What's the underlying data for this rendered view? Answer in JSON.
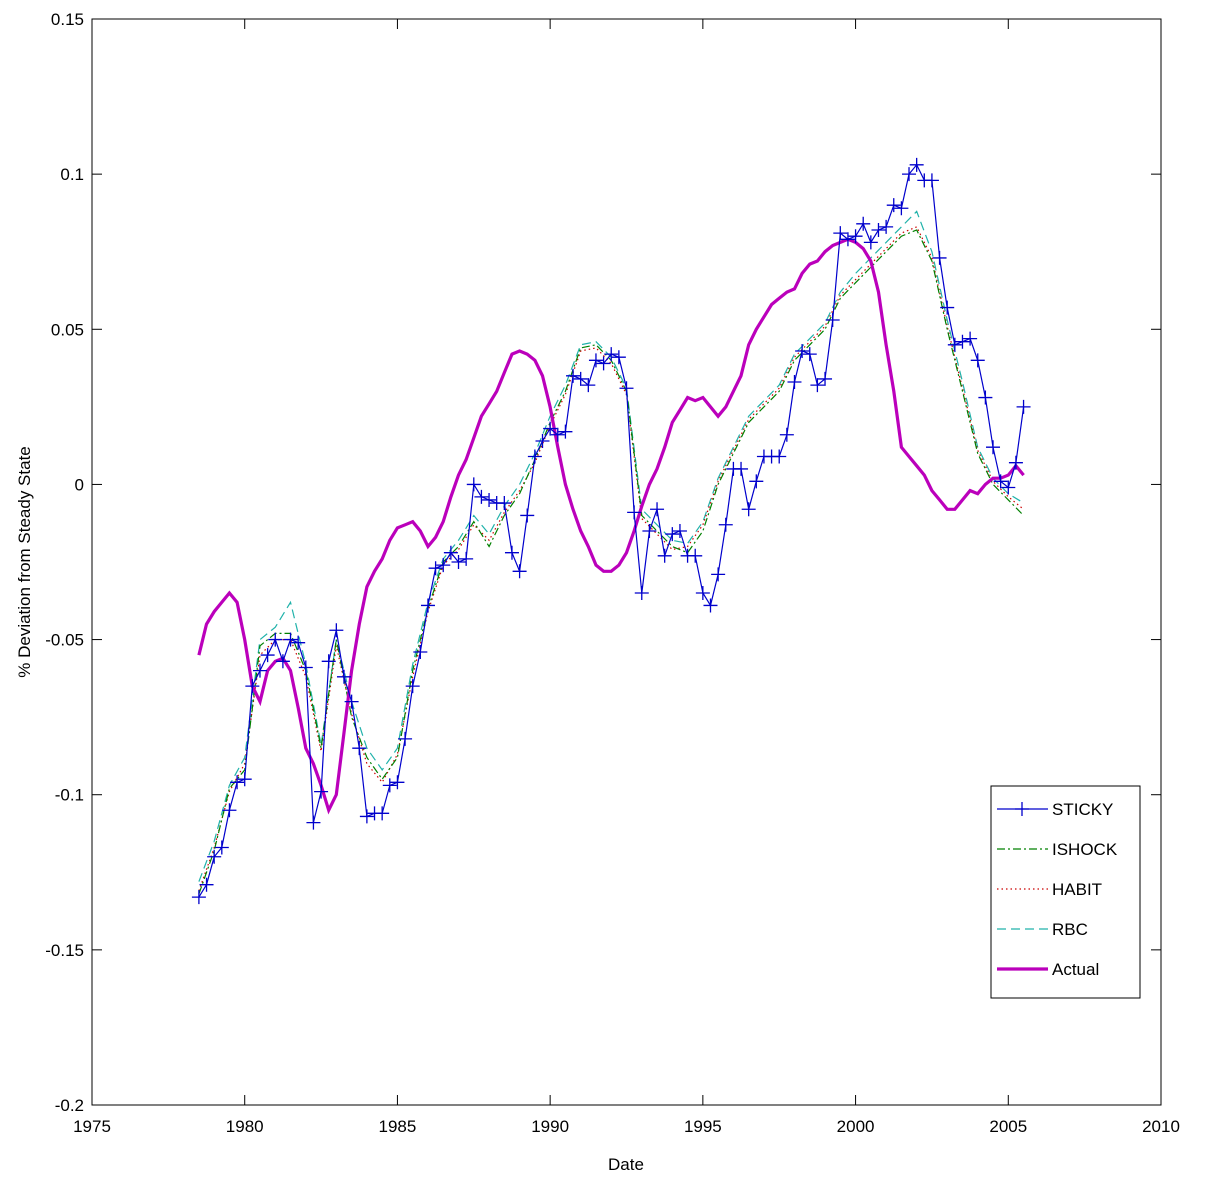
{
  "chart_data": {
    "type": "line",
    "title": "",
    "xlabel": "Date",
    "ylabel": "% Deviation from Steady State",
    "xlim": [
      1975,
      2010
    ],
    "ylim": [
      -0.2,
      0.15
    ],
    "xticks": [
      1975,
      1980,
      1985,
      1990,
      1995,
      2000,
      2005,
      2010
    ],
    "xtick_labels": [
      "1975",
      "1980",
      "1985",
      "1990",
      "1995",
      "2000",
      "2005",
      "2010"
    ],
    "yticks": [
      -0.2,
      -0.15,
      -0.1,
      -0.05,
      0,
      0.05,
      0.1,
      0.15
    ],
    "ytick_labels": [
      "-0.2",
      "-0.15",
      "-0.1",
      "-0.05",
      "0",
      "0.05",
      "0.1",
      "0.15"
    ],
    "grid": false,
    "legend_position": "lower-right",
    "series": [
      {
        "name": "STICKY",
        "color": "#0000cc",
        "style": "solid-plus",
        "x": [
          1978.5,
          1978.75,
          1979.0,
          1979.25,
          1979.5,
          1979.75,
          1980.0,
          1980.25,
          1980.5,
          1980.75,
          1981.0,
          1981.25,
          1981.5,
          1981.75,
          1982.0,
          1982.25,
          1982.5,
          1982.75,
          1983.0,
          1983.25,
          1983.5,
          1983.75,
          1984.0,
          1984.25,
          1984.5,
          1984.75,
          1985.0,
          1985.25,
          1985.5,
          1985.75,
          1986.0,
          1986.25,
          1986.5,
          1986.75,
          1987.0,
          1987.25,
          1987.5,
          1987.75,
          1988.0,
          1988.25,
          1988.5,
          1988.75,
          1989.0,
          1989.25,
          1989.5,
          1989.75,
          1990.0,
          1990.25,
          1990.5,
          1990.75,
          1991.0,
          1991.25,
          1991.5,
          1991.75,
          1992.0,
          1992.25,
          1992.5,
          1992.75,
          1993.0,
          1993.25,
          1993.5,
          1993.75,
          1994.0,
          1994.25,
          1994.5,
          1994.75,
          1995.0,
          1995.25,
          1995.5,
          1995.75,
          1996.0,
          1996.25,
          1996.5,
          1996.75,
          1997.0,
          1997.25,
          1997.5,
          1997.75,
          1998.0,
          1998.25,
          1998.5,
          1998.75,
          1999.0,
          1999.25,
          1999.5,
          1999.75,
          2000.0,
          2000.25,
          2000.5,
          2000.75,
          2001.0,
          2001.25,
          2001.5,
          2001.75,
          2002.0,
          2002.25,
          2002.5,
          2002.75,
          2003.0,
          2003.25,
          2003.5,
          2003.75,
          2004.0,
          2004.25,
          2004.5,
          2004.75,
          2005.0,
          2005.25,
          2005.5
        ],
        "y": [
          -0.133,
          -0.129,
          -0.12,
          -0.117,
          -0.105,
          -0.096,
          -0.095,
          -0.065,
          -0.06,
          -0.055,
          -0.05,
          -0.057,
          -0.05,
          -0.051,
          -0.059,
          -0.109,
          -0.099,
          -0.057,
          -0.047,
          -0.062,
          -0.07,
          -0.085,
          -0.107,
          -0.106,
          -0.106,
          -0.097,
          -0.096,
          -0.082,
          -0.065,
          -0.054,
          -0.039,
          -0.027,
          -0.026,
          -0.022,
          -0.025,
          -0.024,
          0.0,
          -0.004,
          -0.005,
          -0.006,
          -0.006,
          -0.022,
          -0.028,
          -0.01,
          0.009,
          0.014,
          0.018,
          0.016,
          0.017,
          0.035,
          0.034,
          0.032,
          0.04,
          0.039,
          0.042,
          0.041,
          0.031,
          -0.009,
          -0.035,
          -0.015,
          -0.008,
          -0.023,
          -0.016,
          -0.015,
          -0.023,
          -0.023,
          -0.035,
          -0.039,
          -0.029,
          -0.013,
          0.005,
          0.005,
          -0.008,
          0.001,
          0.009,
          0.009,
          0.009,
          0.016,
          0.033,
          0.043,
          0.042,
          0.032,
          0.034,
          0.053,
          0.081,
          0.079,
          0.08,
          0.084,
          0.078,
          0.082,
          0.083,
          0.09,
          0.089,
          0.1,
          0.103,
          0.098,
          0.098,
          0.073,
          0.057,
          0.045,
          0.046,
          0.047,
          0.04,
          0.028,
          0.012,
          0.001,
          -0.001,
          0.007,
          0.025
        ]
      },
      {
        "name": "ISHOCK",
        "color": "#008000",
        "style": "dash-dot",
        "x": [
          1978.5,
          1979.0,
          1979.5,
          1980.0,
          1980.5,
          1981.0,
          1981.5,
          1982.0,
          1982.5,
          1983.0,
          1983.5,
          1984.0,
          1984.5,
          1985.0,
          1985.5,
          1986.0,
          1986.5,
          1987.0,
          1987.5,
          1988.0,
          1988.5,
          1989.0,
          1989.5,
          1990.0,
          1990.5,
          1991.0,
          1991.5,
          1992.0,
          1992.5,
          1993.0,
          1993.5,
          1994.0,
          1994.5,
          1995.0,
          1995.5,
          1996.0,
          1996.5,
          1997.0,
          1997.5,
          1998.0,
          1998.5,
          1999.0,
          1999.5,
          2000.0,
          2000.5,
          2001.0,
          2001.5,
          2002.0,
          2002.5,
          2003.0,
          2003.5,
          2004.0,
          2004.5,
          2005.0,
          2005.5
        ],
        "y": [
          -0.132,
          -0.118,
          -0.098,
          -0.092,
          -0.052,
          -0.048,
          -0.048,
          -0.06,
          -0.085,
          -0.05,
          -0.075,
          -0.088,
          -0.095,
          -0.088,
          -0.06,
          -0.04,
          -0.025,
          -0.02,
          -0.012,
          -0.02,
          -0.01,
          -0.003,
          0.008,
          0.02,
          0.03,
          0.044,
          0.045,
          0.04,
          0.03,
          -0.01,
          -0.015,
          -0.02,
          -0.022,
          -0.015,
          0.0,
          0.01,
          0.02,
          0.025,
          0.03,
          0.04,
          0.045,
          0.05,
          0.06,
          0.065,
          0.07,
          0.075,
          0.08,
          0.082,
          0.072,
          0.05,
          0.03,
          0.01,
          0.0,
          -0.005,
          -0.01
        ]
      },
      {
        "name": "HABIT",
        "color": "#cc0000",
        "style": "dotted",
        "x": [
          1978.5,
          1979.0,
          1979.5,
          1980.0,
          1980.5,
          1981.0,
          1981.5,
          1982.0,
          1982.5,
          1983.0,
          1983.5,
          1984.0,
          1984.5,
          1985.0,
          1985.5,
          1986.0,
          1986.5,
          1987.0,
          1987.5,
          1988.0,
          1988.5,
          1989.0,
          1989.5,
          1990.0,
          1990.5,
          1991.0,
          1991.5,
          1992.0,
          1992.5,
          1993.0,
          1993.5,
          1994.0,
          1994.5,
          1995.0,
          1995.5,
          1996.0,
          1996.5,
          1997.0,
          1997.5,
          1998.0,
          1998.5,
          1999.0,
          1999.5,
          2000.0,
          2000.5,
          2001.0,
          2001.5,
          2002.0,
          2002.5,
          2003.0,
          2003.5,
          2004.0,
          2004.5,
          2005.0,
          2005.5
        ],
        "y": [
          -0.131,
          -0.117,
          -0.099,
          -0.09,
          -0.055,
          -0.05,
          -0.05,
          -0.062,
          -0.086,
          -0.052,
          -0.074,
          -0.09,
          -0.096,
          -0.087,
          -0.062,
          -0.041,
          -0.026,
          -0.021,
          -0.013,
          -0.018,
          -0.009,
          -0.002,
          0.007,
          0.019,
          0.029,
          0.043,
          0.044,
          0.039,
          0.029,
          -0.011,
          -0.016,
          -0.021,
          -0.02,
          -0.013,
          0.001,
          0.011,
          0.021,
          0.026,
          0.031,
          0.041,
          0.046,
          0.051,
          0.061,
          0.066,
          0.071,
          0.076,
          0.081,
          0.083,
          0.073,
          0.051,
          0.031,
          0.011,
          0.001,
          -0.004,
          -0.008
        ]
      },
      {
        "name": "RBC",
        "color": "#20b2aa",
        "style": "dashed",
        "x": [
          1978.5,
          1979.0,
          1979.5,
          1980.0,
          1980.5,
          1981.0,
          1981.5,
          1982.0,
          1982.5,
          1983.0,
          1983.5,
          1984.0,
          1984.5,
          1985.0,
          1985.5,
          1986.0,
          1986.5,
          1987.0,
          1987.5,
          1988.0,
          1988.5,
          1989.0,
          1989.5,
          1990.0,
          1990.5,
          1991.0,
          1991.5,
          1992.0,
          1992.5,
          1993.0,
          1993.5,
          1994.0,
          1994.5,
          1995.0,
          1995.5,
          1996.0,
          1996.5,
          1997.0,
          1997.5,
          1998.0,
          1998.5,
          1999.0,
          1999.5,
          2000.0,
          2000.5,
          2001.0,
          2001.5,
          2002.0,
          2002.5,
          2003.0,
          2003.5,
          2004.0,
          2004.5,
          2005.0,
          2005.5
        ],
        "y": [
          -0.128,
          -0.115,
          -0.097,
          -0.088,
          -0.05,
          -0.046,
          -0.038,
          -0.058,
          -0.084,
          -0.05,
          -0.07,
          -0.085,
          -0.092,
          -0.085,
          -0.058,
          -0.038,
          -0.024,
          -0.018,
          -0.01,
          -0.016,
          -0.007,
          0.0,
          0.01,
          0.022,
          0.032,
          0.045,
          0.046,
          0.041,
          0.031,
          -0.008,
          -0.013,
          -0.018,
          -0.019,
          -0.012,
          0.002,
          0.012,
          0.022,
          0.027,
          0.032,
          0.042,
          0.047,
          0.052,
          0.062,
          0.068,
          0.073,
          0.078,
          0.083,
          0.088,
          0.075,
          0.053,
          0.033,
          0.012,
          0.002,
          -0.003,
          -0.006
        ]
      },
      {
        "name": "Actual",
        "color": "#bb00bb",
        "style": "thick-solid",
        "x": [
          1978.5,
          1978.75,
          1979.0,
          1979.25,
          1979.5,
          1979.75,
          1980.0,
          1980.25,
          1980.5,
          1980.75,
          1981.0,
          1981.25,
          1981.5,
          1981.75,
          1982.0,
          1982.25,
          1982.5,
          1982.75,
          1983.0,
          1983.25,
          1983.5,
          1983.75,
          1984.0,
          1984.25,
          1984.5,
          1984.75,
          1985.0,
          1985.25,
          1985.5,
          1985.75,
          1986.0,
          1986.25,
          1986.5,
          1986.75,
          1987.0,
          1987.25,
          1987.5,
          1987.75,
          1988.0,
          1988.25,
          1988.5,
          1988.75,
          1989.0,
          1989.25,
          1989.5,
          1989.75,
          1990.0,
          1990.25,
          1990.5,
          1990.75,
          1991.0,
          1991.25,
          1991.5,
          1991.75,
          1992.0,
          1992.25,
          1992.5,
          1992.75,
          1993.0,
          1993.25,
          1993.5,
          1993.75,
          1994.0,
          1994.25,
          1994.5,
          1994.75,
          1995.0,
          1995.25,
          1995.5,
          1995.75,
          1996.0,
          1996.25,
          1996.5,
          1996.75,
          1997.0,
          1997.25,
          1997.5,
          1997.75,
          1998.0,
          1998.25,
          1998.5,
          1998.75,
          1999.0,
          1999.25,
          1999.5,
          1999.75,
          2000.0,
          2000.25,
          2000.5,
          2000.75,
          2001.0,
          2001.25,
          2001.5,
          2001.75,
          2002.0,
          2002.25,
          2002.5,
          2002.75,
          2003.0,
          2003.25,
          2003.5,
          2003.75,
          2004.0,
          2004.25,
          2004.5,
          2004.75,
          2005.0,
          2005.25,
          2005.5
        ],
        "y": [
          -0.055,
          -0.045,
          -0.041,
          -0.038,
          -0.035,
          -0.038,
          -0.05,
          -0.065,
          -0.07,
          -0.06,
          -0.057,
          -0.056,
          -0.06,
          -0.072,
          -0.085,
          -0.09,
          -0.097,
          -0.105,
          -0.1,
          -0.08,
          -0.06,
          -0.045,
          -0.033,
          -0.028,
          -0.024,
          -0.018,
          -0.014,
          -0.013,
          -0.012,
          -0.015,
          -0.02,
          -0.017,
          -0.012,
          -0.004,
          0.003,
          0.008,
          0.015,
          0.022,
          0.026,
          0.03,
          0.036,
          0.042,
          0.043,
          0.042,
          0.04,
          0.035,
          0.025,
          0.012,
          0.0,
          -0.008,
          -0.015,
          -0.02,
          -0.026,
          -0.028,
          -0.028,
          -0.026,
          -0.022,
          -0.015,
          -0.007,
          0.0,
          0.005,
          0.012,
          0.02,
          0.024,
          0.028,
          0.027,
          0.028,
          0.025,
          0.022,
          0.025,
          0.03,
          0.035,
          0.045,
          0.05,
          0.054,
          0.058,
          0.06,
          0.062,
          0.063,
          0.068,
          0.071,
          0.072,
          0.075,
          0.077,
          0.078,
          0.079,
          0.078,
          0.076,
          0.072,
          0.062,
          0.045,
          0.03,
          0.012,
          0.009,
          0.006,
          0.003,
          -0.002,
          -0.005,
          -0.008,
          -0.008,
          -0.005,
          -0.002,
          -0.003,
          0.0,
          0.002,
          0.002,
          0.003,
          0.006,
          0.003
        ]
      }
    ]
  }
}
